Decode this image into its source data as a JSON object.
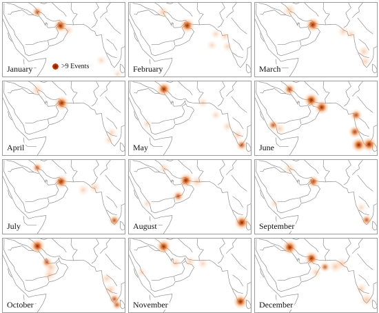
{
  "legend": {
    "label": ">9 Events",
    "color": "#c23a00"
  },
  "colors": {
    "heat_core": "#7a1a00",
    "heat_mid": "#e06010",
    "heat_edge": "#f6b07a",
    "coastline": "#8c8c8c"
  },
  "panels": [
    {
      "month": "January",
      "hotspots": [
        {
          "lon": 47.8,
          "lat": 30.3,
          "intensity": 0.55
        },
        {
          "lon": 56.8,
          "lat": 24.8,
          "intensity": 0.9
        },
        {
          "lon": 59.8,
          "lat": 23.0,
          "intensity": 0.25
        },
        {
          "lon": 72.5,
          "lat": 11.0,
          "intensity": 0.2
        },
        {
          "lon": 78.8,
          "lat": 5.5,
          "intensity": 0.15
        }
      ]
    },
    {
      "month": "February",
      "hotspots": [
        {
          "lon": 47.6,
          "lat": 30.2,
          "intensity": 0.4
        },
        {
          "lon": 57.0,
          "lat": 24.9,
          "intensity": 0.95
        },
        {
          "lon": 68.0,
          "lat": 21.5,
          "intensity": 0.2
        },
        {
          "lon": 71.5,
          "lat": 20.5,
          "intensity": 0.2
        },
        {
          "lon": 66.5,
          "lat": 17.0,
          "intensity": 0.2
        },
        {
          "lon": 72.5,
          "lat": 16.5,
          "intensity": 0.25
        }
      ]
    },
    {
      "month": "March",
      "hotspots": [
        {
          "lon": 47.8,
          "lat": 31.0,
          "intensity": 0.45
        },
        {
          "lon": 56.8,
          "lat": 25.2,
          "intensity": 0.95
        },
        {
          "lon": 68.5,
          "lat": 22.5,
          "intensity": 0.3
        },
        {
          "lon": 71.5,
          "lat": 21.5,
          "intensity": 0.25
        },
        {
          "lon": 76.5,
          "lat": 14.5,
          "intensity": 0.35
        },
        {
          "lon": 77.0,
          "lat": 10.5,
          "intensity": 0.3
        }
      ]
    },
    {
      "month": "April",
      "hotspots": [
        {
          "lon": 47.8,
          "lat": 30.6,
          "intensity": 0.4
        },
        {
          "lon": 57.2,
          "lat": 25.3,
          "intensity": 0.95
        },
        {
          "lon": 76.5,
          "lat": 13.5,
          "intensity": 0.25
        },
        {
          "lon": 75.5,
          "lat": 10.5,
          "intensity": 0.2
        }
      ]
    },
    {
      "month": "May",
      "hotspots": [
        {
          "lon": 48.0,
          "lat": 30.9,
          "intensity": 0.95
        },
        {
          "lon": 41.5,
          "lat": 17.0,
          "intensity": 0.2
        },
        {
          "lon": 63.0,
          "lat": 25.5,
          "intensity": 0.25
        },
        {
          "lon": 68.0,
          "lat": 20.5,
          "intensity": 0.2
        },
        {
          "lon": 72.5,
          "lat": 16.0,
          "intensity": 0.25
        },
        {
          "lon": 76.5,
          "lat": 12.5,
          "intensity": 0.35
        },
        {
          "lon": 78.0,
          "lat": 8.5,
          "intensity": 0.6
        }
      ]
    },
    {
      "month": "June",
      "hotspots": [
        {
          "lon": 47.8,
          "lat": 30.8,
          "intensity": 0.7
        },
        {
          "lon": 56.2,
          "lat": 26.5,
          "intensity": 1.0
        },
        {
          "lon": 60.2,
          "lat": 23.6,
          "intensity": 0.95
        },
        {
          "lon": 41.5,
          "lat": 16.5,
          "intensity": 0.55
        },
        {
          "lon": 44.0,
          "lat": 15.0,
          "intensity": 0.35
        },
        {
          "lon": 73.5,
          "lat": 20.5,
          "intensity": 0.7
        },
        {
          "lon": 73.0,
          "lat": 13.8,
          "intensity": 0.75
        },
        {
          "lon": 74.5,
          "lat": 8.6,
          "intensity": 1.0
        },
        {
          "lon": 78.5,
          "lat": 8.8,
          "intensity": 1.0
        }
      ]
    },
    {
      "month": "July",
      "hotspots": [
        {
          "lon": 47.8,
          "lat": 30.9,
          "intensity": 0.5
        },
        {
          "lon": 57.0,
          "lat": 25.3,
          "intensity": 0.9
        },
        {
          "lon": 65.5,
          "lat": 22.0,
          "intensity": 0.3
        },
        {
          "lon": 70.0,
          "lat": 23.0,
          "intensity": 0.35
        },
        {
          "lon": 77.5,
          "lat": 9.8,
          "intensity": 0.6
        }
      ]
    },
    {
      "month": "August",
      "hotspots": [
        {
          "lon": 48.0,
          "lat": 30.7,
          "intensity": 0.3
        },
        {
          "lon": 56.5,
          "lat": 25.8,
          "intensity": 0.95
        },
        {
          "lon": 60.8,
          "lat": 25.3,
          "intensity": 0.4
        },
        {
          "lon": 53.5,
          "lat": 19.5,
          "intensity": 0.6
        },
        {
          "lon": 41.5,
          "lat": 16.5,
          "intensity": 0.15
        },
        {
          "lon": 78.0,
          "lat": 9.0,
          "intensity": 1.0
        }
      ]
    },
    {
      "month": "September",
      "hotspots": [
        {
          "lon": 47.8,
          "lat": 30.6,
          "intensity": 0.35
        },
        {
          "lon": 57.0,
          "lat": 25.3,
          "intensity": 0.7
        },
        {
          "lon": 42.0,
          "lat": 16.5,
          "intensity": 0.15
        },
        {
          "lon": 75.5,
          "lat": 15.0,
          "intensity": 0.2
        },
        {
          "lon": 77.5,
          "lat": 10.0,
          "intensity": 0.55
        }
      ]
    },
    {
      "month": "October",
      "hotspots": [
        {
          "lon": 47.9,
          "lat": 31.0,
          "intensity": 1.0
        },
        {
          "lon": 51.5,
          "lat": 24.5,
          "intensity": 0.55
        },
        {
          "lon": 53.0,
          "lat": 22.5,
          "intensity": 0.45
        },
        {
          "lon": 52.5,
          "lat": 19.5,
          "intensity": 0.4
        },
        {
          "lon": 74.5,
          "lat": 18.0,
          "intensity": 0.3
        },
        {
          "lon": 76.0,
          "lat": 13.5,
          "intensity": 0.4
        },
        {
          "lon": 77.5,
          "lat": 9.8,
          "intensity": 0.55
        },
        {
          "lon": 78.5,
          "lat": 7.5,
          "intensity": 0.5
        }
      ]
    },
    {
      "month": "November",
      "hotspots": [
        {
          "lon": 47.9,
          "lat": 30.8,
          "intensity": 0.95
        },
        {
          "lon": 52.5,
          "lat": 24.2,
          "intensity": 0.35
        },
        {
          "lon": 58.0,
          "lat": 24.8,
          "intensity": 0.3
        },
        {
          "lon": 63.0,
          "lat": 24.0,
          "intensity": 0.25
        },
        {
          "lon": 39.5,
          "lat": 20.5,
          "intensity": 0.2
        },
        {
          "lon": 77.5,
          "lat": 8.8,
          "intensity": 0.95
        }
      ]
    },
    {
      "month": "December",
      "hotspots": [
        {
          "lon": 47.9,
          "lat": 30.5,
          "intensity": 1.0
        },
        {
          "lon": 56.3,
          "lat": 26.1,
          "intensity": 0.9
        },
        {
          "lon": 61.5,
          "lat": 22.6,
          "intensity": 0.5
        },
        {
          "lon": 65.5,
          "lat": 22.8,
          "intensity": 0.45
        },
        {
          "lon": 68.0,
          "lat": 24.0,
          "intensity": 0.4
        },
        {
          "lon": 58.0,
          "lat": 20.5,
          "intensity": 0.3
        },
        {
          "lon": 75.5,
          "lat": 14.0,
          "intensity": 0.3
        },
        {
          "lon": 77.5,
          "lat": 9.5,
          "intensity": 0.45
        }
      ]
    }
  ]
}
